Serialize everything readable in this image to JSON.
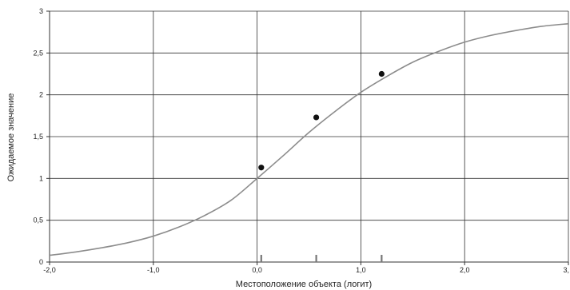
{
  "chart_data": {
    "type": "line",
    "xlabel": "Местоположение объекта (логит)",
    "ylabel": "Ожидаемое значение",
    "xlim": [
      -2,
      3
    ],
    "ylim": [
      0,
      3
    ],
    "x_ticks": [
      {
        "value": -2,
        "label": "-2,0"
      },
      {
        "value": -1,
        "label": "-1,0"
      },
      {
        "value": 0,
        "label": "0,0"
      },
      {
        "value": 1,
        "label": "1,0"
      },
      {
        "value": 2,
        "label": "2,0"
      },
      {
        "value": 3,
        "label": "3,"
      }
    ],
    "y_ticks": [
      {
        "value": 0,
        "label": "0"
      },
      {
        "value": 0.5,
        "label": "0,5"
      },
      {
        "value": 1,
        "label": "1"
      },
      {
        "value": 1.5,
        "label": "1,5"
      },
      {
        "value": 2,
        "label": "2"
      },
      {
        "value": 2.5,
        "label": "2,5"
      },
      {
        "value": 3,
        "label": "3"
      }
    ],
    "grid": true,
    "series": [
      {
        "kind": "curve",
        "color": "#8c8c8c",
        "points": [
          [
            -2.0,
            0.08
          ],
          [
            -1.75,
            0.12
          ],
          [
            -1.5,
            0.17
          ],
          [
            -1.25,
            0.23
          ],
          [
            -1.0,
            0.31
          ],
          [
            -0.75,
            0.42
          ],
          [
            -0.5,
            0.56
          ],
          [
            -0.25,
            0.74
          ],
          [
            0.0,
            1.0
          ],
          [
            0.25,
            1.27
          ],
          [
            0.5,
            1.55
          ],
          [
            0.75,
            1.8
          ],
          [
            1.0,
            2.03
          ],
          [
            1.25,
            2.22
          ],
          [
            1.5,
            2.39
          ],
          [
            1.75,
            2.52
          ],
          [
            2.0,
            2.63
          ],
          [
            2.25,
            2.71
          ],
          [
            2.5,
            2.77
          ],
          [
            2.75,
            2.82
          ],
          [
            3.0,
            2.85
          ]
        ]
      },
      {
        "kind": "observed",
        "color": "#111111",
        "points": [
          [
            0.04,
            1.13
          ],
          [
            0.57,
            1.73
          ],
          [
            1.2,
            2.25
          ]
        ]
      }
    ],
    "rug_marks": [
      0.04,
      0.57,
      1.2
    ]
  }
}
